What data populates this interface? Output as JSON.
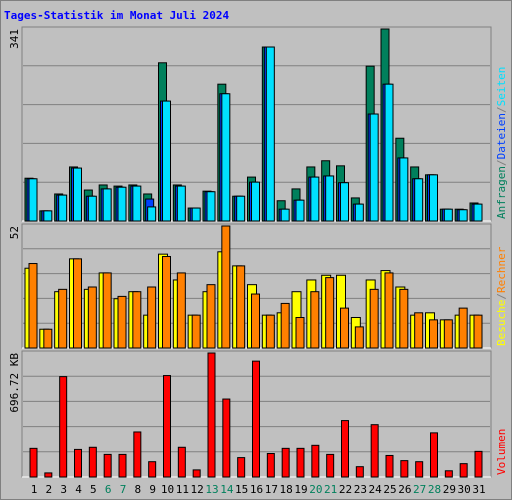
{
  "chart_data": [
    {
      "type": "bar",
      "title": "Tages-Statistik im Monat Juli 2024",
      "title_color": "#0000ff",
      "ylim": [
        0,
        341
      ],
      "yticks": [
        341
      ],
      "legend_separator": "/",
      "series": [
        {
          "name": "Anfragen",
          "color": "#00805c",
          "values": [
            76,
            18,
            48,
            96,
            55,
            64,
            62,
            64,
            48,
            281,
            64,
            23,
            53,
            243,
            44,
            78,
            309,
            36,
            57,
            96,
            107,
            98,
            41,
            275,
            341,
            147,
            96,
            82,
            21,
            21,
            32
          ]
        },
        {
          "name": "Dateien",
          "color": "#0040ff",
          "values": [
            75,
            18,
            46,
            94,
            44,
            57,
            60,
            62,
            39,
            213,
            62,
            23,
            52,
            226,
            44,
            69,
            309,
            21,
            37,
            78,
            80,
            68,
            30,
            190,
            243,
            112,
            75,
            82,
            21,
            20,
            30
          ]
        },
        {
          "name": "Seiten",
          "color": "#00e0ff",
          "values": [
            75,
            18,
            46,
            94,
            44,
            57,
            60,
            62,
            25,
            213,
            62,
            23,
            52,
            226,
            44,
            69,
            309,
            21,
            37,
            78,
            80,
            68,
            30,
            190,
            243,
            112,
            75,
            82,
            21,
            20,
            30
          ]
        }
      ]
    },
    {
      "type": "bar",
      "ylim": [
        0,
        52
      ],
      "yticks": [
        52
      ],
      "legend_separator": "/",
      "series": [
        {
          "name": "Besuche",
          "color": "#ffff00",
          "values": [
            34,
            8,
            24,
            38,
            25,
            32,
            21,
            24,
            14,
            40,
            29,
            14,
            24,
            41,
            35,
            27,
            14,
            15,
            24,
            29,
            31,
            31,
            13,
            29,
            33,
            26,
            14,
            15,
            12,
            14,
            14
          ]
        },
        {
          "name": "Rechner",
          "color": "#ff8000",
          "values": [
            36,
            8,
            25,
            38,
            26,
            32,
            22,
            24,
            26,
            39,
            32,
            14,
            27,
            52,
            35,
            23,
            14,
            19,
            13,
            24,
            30,
            17,
            9,
            25,
            32,
            25,
            15,
            12,
            12,
            17,
            14
          ]
        }
      ]
    },
    {
      "type": "bar",
      "ylim": [
        0,
        696.72
      ],
      "yticks": [
        {
          "value": 696.72,
          "label": "696.72 KB"
        }
      ],
      "categories": [
        "1",
        "2",
        "3",
        "4",
        "5",
        "6",
        "7",
        "8",
        "9",
        "10",
        "11",
        "12",
        "13",
        "14",
        "15",
        "16",
        "17",
        "18",
        "19",
        "20",
        "21",
        "22",
        "23",
        "24",
        "25",
        "26",
        "27",
        "28",
        "29",
        "30",
        "31"
      ],
      "category_colors": [
        "#000000",
        "#000000",
        "#000000",
        "#000000",
        "#000000",
        "#00805c",
        "#00805c",
        "#000000",
        "#000000",
        "#000000",
        "#000000",
        "#000000",
        "#00805c",
        "#00805c",
        "#000000",
        "#000000",
        "#000000",
        "#000000",
        "#000000",
        "#00805c",
        "#00805c",
        "#000000",
        "#000000",
        "#000000",
        "#000000",
        "#000000",
        "#00805c",
        "#00805c",
        "#000000",
        "#000000",
        "#000000"
      ],
      "series": [
        {
          "name": "Volumen",
          "color": "#ff0000",
          "values": [
            161,
            23,
            564,
            155,
            167,
            127,
            127,
            253,
            86,
            570,
            167,
            40,
            696.72,
            438,
            109,
            651,
            132,
            161,
            161,
            178,
            127,
            317,
            58,
            294,
            121,
            92,
            86,
            248,
            35,
            75,
            144
          ]
        }
      ]
    }
  ]
}
